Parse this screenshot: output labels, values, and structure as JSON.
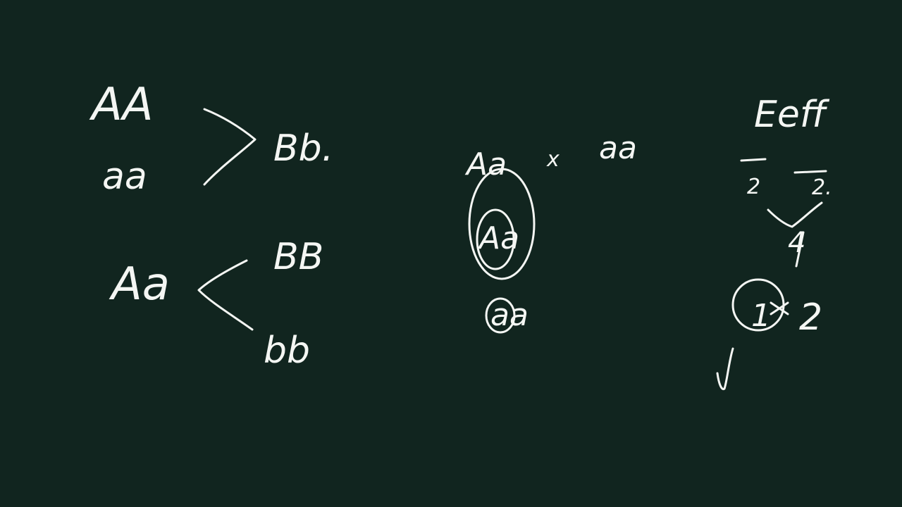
{
  "board": {
    "background_color": "#11251f",
    "chalk_color": "#f4f6f3",
    "left": {
      "top_row_1": "AA",
      "top_row_2": "aa",
      "top_result": "Bb.",
      "heterozygote": "Aa",
      "branch_1": "BB",
      "branch_2": "bb"
    },
    "middle": {
      "cross_left": "Aa",
      "cross_symbol": "x",
      "cross_right": "aa",
      "offspring_1": "Aa",
      "offspring_2": "aa"
    },
    "right": {
      "genotype": "Eeff",
      "fraction_left": "2",
      "fraction_right": "2.",
      "product": "4",
      "ratio_left": "1",
      "ratio_right": "2"
    }
  }
}
